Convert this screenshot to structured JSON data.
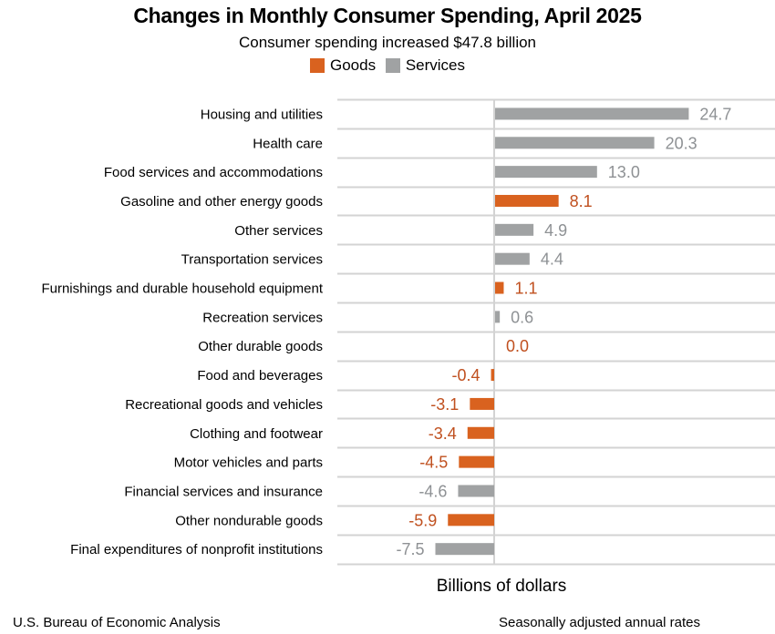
{
  "chart_data": {
    "type": "bar",
    "orientation": "horizontal",
    "title": "Changes in Monthly Consumer Spending, April 2025",
    "subtitle": "Consumer spending increased $47.8 billion",
    "xlabel": "Billions of dollars",
    "ylabel": "",
    "xlim": [
      -7.5,
      24.7
    ],
    "grid": true,
    "legend": {
      "placement": "top-center",
      "entries": [
        {
          "name": "Goods",
          "color": "#D9621F"
        },
        {
          "name": "Services",
          "color": "#A0A2A3"
        }
      ]
    },
    "colors": {
      "Goods": "#D9621F",
      "Services": "#A0A2A3",
      "goods_label": "#C0501F",
      "services_label": "#8E9194",
      "grid": "#D3D3D3"
    },
    "categories": [
      "Housing and utilities",
      "Health care",
      "Food services and accommodations",
      "Gasoline and other energy goods",
      "Other services",
      "Transportation services",
      "Furnishings and durable household equipment",
      "Recreation services",
      "Other durable goods",
      "Food and beverages",
      "Recreational goods and vehicles",
      "Clothing and footwear",
      "Motor vehicles and parts",
      "Financial services and insurance",
      "Other nondurable goods",
      "Final expenditures of nonprofit institutions"
    ],
    "values": [
      24.7,
      20.3,
      13.0,
      8.1,
      4.9,
      4.4,
      1.1,
      0.6,
      0.0,
      -0.4,
      -3.1,
      -3.4,
      -4.5,
      -4.6,
      -5.9,
      -7.5
    ],
    "value_labels": [
      "24.7",
      "20.3",
      "13.0",
      "8.1",
      "4.9",
      "4.4",
      "1.1",
      "0.6",
      "0.0",
      "-0.4",
      "-3.1",
      "-3.4",
      "-4.5",
      "-4.6",
      "-5.9",
      "-7.5"
    ],
    "series_type": [
      "Services",
      "Services",
      "Services",
      "Goods",
      "Services",
      "Services",
      "Goods",
      "Services",
      "Goods",
      "Goods",
      "Goods",
      "Goods",
      "Goods",
      "Services",
      "Goods",
      "Services"
    ]
  },
  "footer": {
    "source": "U.S. Bureau of Economic Analysis",
    "note": "Seasonally adjusted annual rates"
  }
}
